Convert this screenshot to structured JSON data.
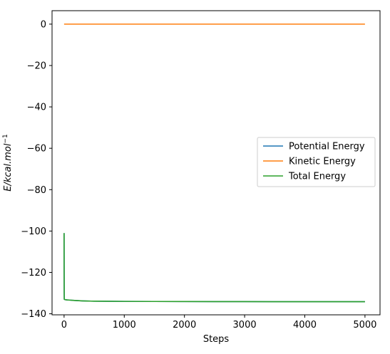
{
  "chart_data": {
    "type": "line",
    "xlabel": "Steps",
    "ylabel_main": "E/kcal.mol",
    "ylabel_sup": "−1",
    "xlim": [
      -200,
      5250
    ],
    "ylim": [
      -140.5,
      6.5
    ],
    "xticks": [
      0,
      1000,
      2000,
      3000,
      4000,
      5000
    ],
    "xtick_labels": [
      "0",
      "1000",
      "2000",
      "3000",
      "4000",
      "5000"
    ],
    "yticks": [
      0,
      -20,
      -40,
      -60,
      -80,
      -100,
      -120,
      -140
    ],
    "ytick_labels": [
      "0",
      "−20",
      "−40",
      "−60",
      "−80",
      "−100",
      "−120",
      "−140"
    ],
    "grid": false,
    "legend_position": "center-right",
    "series": [
      {
        "name": "Potential Energy",
        "color": "#1f77b4",
        "x": [
          0,
          1,
          2,
          3,
          10,
          25,
          50,
          100,
          150,
          200,
          300,
          400,
          500,
          700,
          1000,
          1500,
          2000,
          2500,
          3000,
          3500,
          4000,
          4500,
          5000
        ],
        "y": [
          -101,
          -120,
          -130,
          -133,
          -133.1,
          -133.2,
          -133.3,
          -133.4,
          -133.5,
          -133.6,
          -133.75,
          -133.85,
          -133.9,
          -133.95,
          -134.0,
          -134.05,
          -134.08,
          -134.1,
          -134.12,
          -134.14,
          -134.15,
          -134.16,
          -134.17
        ]
      },
      {
        "name": "Kinetic Energy",
        "color": "#ff7f0e",
        "x": [
          0,
          5000
        ],
        "y": [
          0,
          0
        ]
      },
      {
        "name": "Total Energy",
        "color": "#2ca02c",
        "x": [
          0,
          1,
          2,
          3,
          10,
          25,
          50,
          100,
          150,
          200,
          300,
          400,
          500,
          700,
          1000,
          1500,
          2000,
          2500,
          3000,
          3500,
          4000,
          4500,
          5000
        ],
        "y": [
          -101,
          -120,
          -130,
          -133,
          -133.1,
          -133.2,
          -133.3,
          -133.4,
          -133.5,
          -133.6,
          -133.75,
          -133.85,
          -133.9,
          -133.95,
          -134.0,
          -134.05,
          -134.08,
          -134.1,
          -134.12,
          -134.14,
          -134.15,
          -134.16,
          -134.17
        ]
      }
    ]
  }
}
